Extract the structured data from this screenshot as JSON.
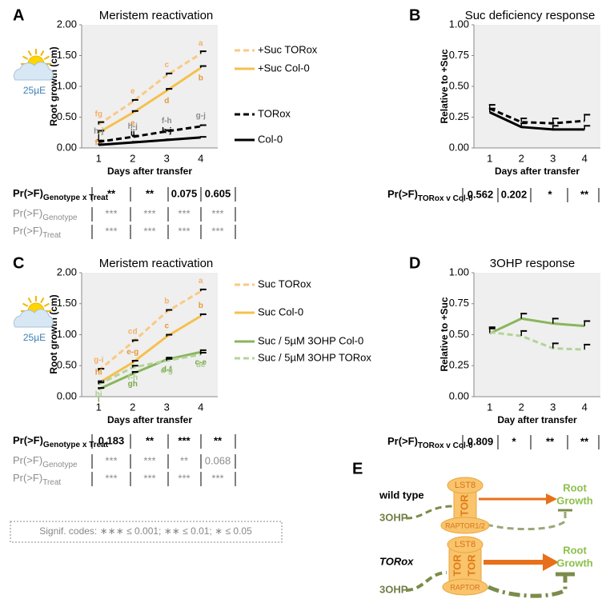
{
  "chart_data": [
    {
      "type": "line",
      "panel": "A",
      "title": "Meristem reactivation",
      "light_label": "25µE",
      "x_label": "Days after transfer",
      "y_label": "Root growth (cm)",
      "categories": [
        "1",
        "2",
        "3",
        "4"
      ],
      "ylim": [
        0,
        2
      ],
      "yticks": [
        {
          "value": 0,
          "label": "0.00"
        },
        {
          "value": 0.5,
          "label": "0.50"
        },
        {
          "value": 1,
          "label": "1.00"
        },
        {
          "value": 1.5,
          "label": "1.50"
        },
        {
          "value": 2,
          "label": "2.00"
        }
      ],
      "grid": false,
      "series": [
        {
          "name": "+Suc TORox",
          "color": "#fac985",
          "dashed": true,
          "label_color": "#f2b06a",
          "values": [
            0.38,
            0.75,
            1.18,
            1.53
          ],
          "errors": [
            0.04,
            0.03,
            0.03,
            0.04
          ],
          "letters": [
            "fg",
            "e",
            "c",
            "a"
          ]
        },
        {
          "name": "+Suc Col-0",
          "color": "#f6c04e",
          "dashed": false,
          "label_color": "#e8973b",
          "values": [
            0.25,
            0.57,
            0.93,
            1.3
          ],
          "errors": [
            0.03,
            0.03,
            0.03,
            0.03
          ],
          "letters": [
            "f-i",
            "e",
            "d",
            "b"
          ]
        },
        {
          "name": "TORox",
          "color": "#000000",
          "dashed": true,
          "label_color": "#8c8c8c",
          "values": [
            0.1,
            0.18,
            0.27,
            0.35
          ],
          "errors": [
            0.02,
            0.02,
            0.02,
            0.02
          ],
          "letters": [
            "h-j",
            "h-j",
            "f-h",
            "g-j"
          ]
        },
        {
          "name": "Col-0",
          "color": "#000000",
          "dashed": false,
          "label_color": "#000000",
          "values": [
            0.05,
            0.09,
            0.13,
            0.17
          ],
          "errors": [
            0.01,
            0.01,
            0.01,
            0.01
          ],
          "letters": [
            "j",
            "ij",
            "h-j",
            null
          ]
        }
      ]
    },
    {
      "type": "line",
      "panel": "B",
      "title": "Suc deficiency response",
      "x_label": "Days after transfer",
      "y_label": "Relative to +Suc",
      "categories": [
        "1",
        "2",
        "3",
        "4"
      ],
      "ylim": [
        0,
        1
      ],
      "yticks": [
        {
          "value": 0,
          "label": "0.00"
        },
        {
          "value": 0.25,
          "label": "0.25"
        },
        {
          "value": 0.5,
          "label": "0.50"
        },
        {
          "value": 0.75,
          "label": "0.75"
        },
        {
          "value": 1,
          "label": "1.00"
        }
      ],
      "grid": false,
      "series": [
        {
          "color": "#000000",
          "dashed": true,
          "values": [
            0.32,
            0.21,
            0.2,
            0.22
          ],
          "errors": [
            0.03,
            0.03,
            0.04,
            0.05
          ]
        },
        {
          "color": "#000000",
          "dashed": false,
          "values": [
            0.29,
            0.17,
            0.15,
            0.15
          ],
          "errors": [
            0.03,
            0.03,
            0.03,
            0.03
          ]
        }
      ]
    },
    {
      "type": "line",
      "panel": "C",
      "title": "Meristem reactivation",
      "light_label": "25µE",
      "x_label": "Days after transfer",
      "y_label": "Root growth (cm)",
      "categories": [
        "1",
        "2",
        "3",
        "4"
      ],
      "ylim": [
        0,
        2
      ],
      "yticks": [
        {
          "value": 0,
          "label": "0.00"
        },
        {
          "value": 0.5,
          "label": "0.50"
        },
        {
          "value": 1,
          "label": "1.00"
        },
        {
          "value": 1.5,
          "label": "1.50"
        },
        {
          "value": 2,
          "label": "2.00"
        }
      ],
      "grid": false,
      "series": [
        {
          "name": "Suc TORox",
          "color": "#fac985",
          "dashed": true,
          "label_color": "#f2b06a",
          "values": [
            0.42,
            0.88,
            1.37,
            1.7
          ],
          "errors": [
            0.03,
            0.03,
            0.03,
            0.03
          ],
          "letters": [
            "g-i",
            "cd",
            "b",
            "a"
          ]
        },
        {
          "name": "Suc Col-0",
          "color": "#f6c04e",
          "dashed": false,
          "label_color": "#e8973b",
          "values": [
            0.22,
            0.55,
            0.97,
            1.3
          ],
          "errors": [
            0.03,
            0.03,
            0.03,
            0.03
          ],
          "letters": [
            "hi",
            "e-g",
            "c",
            "b"
          ]
        },
        {
          "name": "Suc / 5µM 3OHP Col-0",
          "color": "#8ab55c",
          "dashed": false,
          "label_color": "#7aa84c",
          "values": [
            0.12,
            0.37,
            0.6,
            0.72
          ],
          "errors": [
            0.02,
            0.03,
            0.03,
            0.03
          ],
          "letters": [
            "i",
            "gh",
            "d-f",
            "c-e"
          ]
        },
        {
          "name": "Suc / 5µM 3OHP TORox",
          "color": "#b4d39a",
          "dashed": true,
          "label_color": "#a9cc8c",
          "values": [
            0.2,
            0.47,
            0.58,
            0.68
          ],
          "errors": [
            0.03,
            0.03,
            0.03,
            0.03
          ],
          "letters": [
            "hi",
            "f-h",
            "d-g",
            "de"
          ]
        }
      ]
    },
    {
      "type": "line",
      "panel": "D",
      "title": "3OHP response",
      "x_label": "Day after transfer",
      "y_label": "Relative to +Suc",
      "categories": [
        "1",
        "2",
        "3",
        "4"
      ],
      "ylim": [
        0,
        1
      ],
      "yticks": [
        {
          "value": 0,
          "label": "0.00"
        },
        {
          "value": 0.25,
          "label": "0.25"
        },
        {
          "value": 0.5,
          "label": "0.50"
        },
        {
          "value": 0.75,
          "label": "0.75"
        },
        {
          "value": 1,
          "label": "1.00"
        }
      ],
      "grid": false,
      "series": [
        {
          "color": "#8ab55c",
          "dashed": false,
          "values": [
            0.51,
            0.63,
            0.59,
            0.57
          ],
          "errors": [
            0.04,
            0.04,
            0.04,
            0.04
          ]
        },
        {
          "color": "#b4d39a",
          "dashed": true,
          "values": [
            0.52,
            0.49,
            0.39,
            0.38
          ],
          "errors": [
            0.04,
            0.04,
            0.04,
            0.04
          ]
        }
      ]
    }
  ],
  "tables": [
    {
      "rows": [
        {
          "label": "Pr(>F)",
          "sub": "Genotype x Treat",
          "color": "#000000",
          "bold": true,
          "cells": [
            "**",
            "**",
            "0.075",
            "0.605"
          ]
        },
        {
          "label": "Pr(>F)",
          "sub": "Genotype",
          "color": "#8c8c8c",
          "bold": false,
          "cells": [
            "***",
            "***",
            "***",
            "***"
          ]
        },
        {
          "label": "Pr(>F)",
          "sub": "Treat",
          "color": "#8c8c8c",
          "bold": false,
          "cells": [
            "***",
            "***",
            "***",
            "***"
          ]
        }
      ]
    },
    {
      "rows": [
        {
          "label": "Pr(>F)",
          "sub": "TORox v Col-0",
          "color": "#000000",
          "bold": true,
          "cells": [
            "0.562",
            "0.202",
            "*",
            "**"
          ]
        }
      ]
    },
    {
      "rows": [
        {
          "label": "Pr(>F)",
          "sub": "Genotype x Treat",
          "color": "#000000",
          "bold": true,
          "cells": [
            "0.183",
            "**",
            "***",
            "**"
          ]
        },
        {
          "label": "Pr(>F)",
          "sub": "Genotype",
          "color": "#8c8c8c",
          "bold": false,
          "cells": [
            "***",
            "***",
            "**",
            "0.068"
          ]
        },
        {
          "label": "Pr(>F)",
          "sub": "Treat",
          "color": "#8c8c8c",
          "bold": false,
          "cells": [
            "***",
            "***",
            "***",
            "***"
          ]
        }
      ]
    },
    {
      "rows": [
        {
          "label": "Pr(>F)",
          "sub": "TORox v Col-0",
          "color": "#000000",
          "bold": true,
          "cells": [
            "0.809",
            "*",
            "**",
            "**"
          ]
        }
      ]
    }
  ],
  "signif_codes": "Signif. codes: ∗∗∗ ≤ 0.001; ∗∗ ≤ 0.01; ∗ ≤ 0.05",
  "diagram": {
    "panel": "E",
    "wild_type": {
      "title": "wild type",
      "input": "3OHP",
      "top": "LST8",
      "core": "TOR",
      "bottom": "RAPTOR1/2",
      "output": [
        "Root",
        "Growth"
      ]
    },
    "torox": {
      "title": "TORox",
      "input": "3OHP",
      "top": "LST8",
      "core": [
        "TOR",
        "TOR"
      ],
      "bottom": "RAPTOR",
      "output": [
        "Root",
        "Growth"
      ]
    }
  }
}
